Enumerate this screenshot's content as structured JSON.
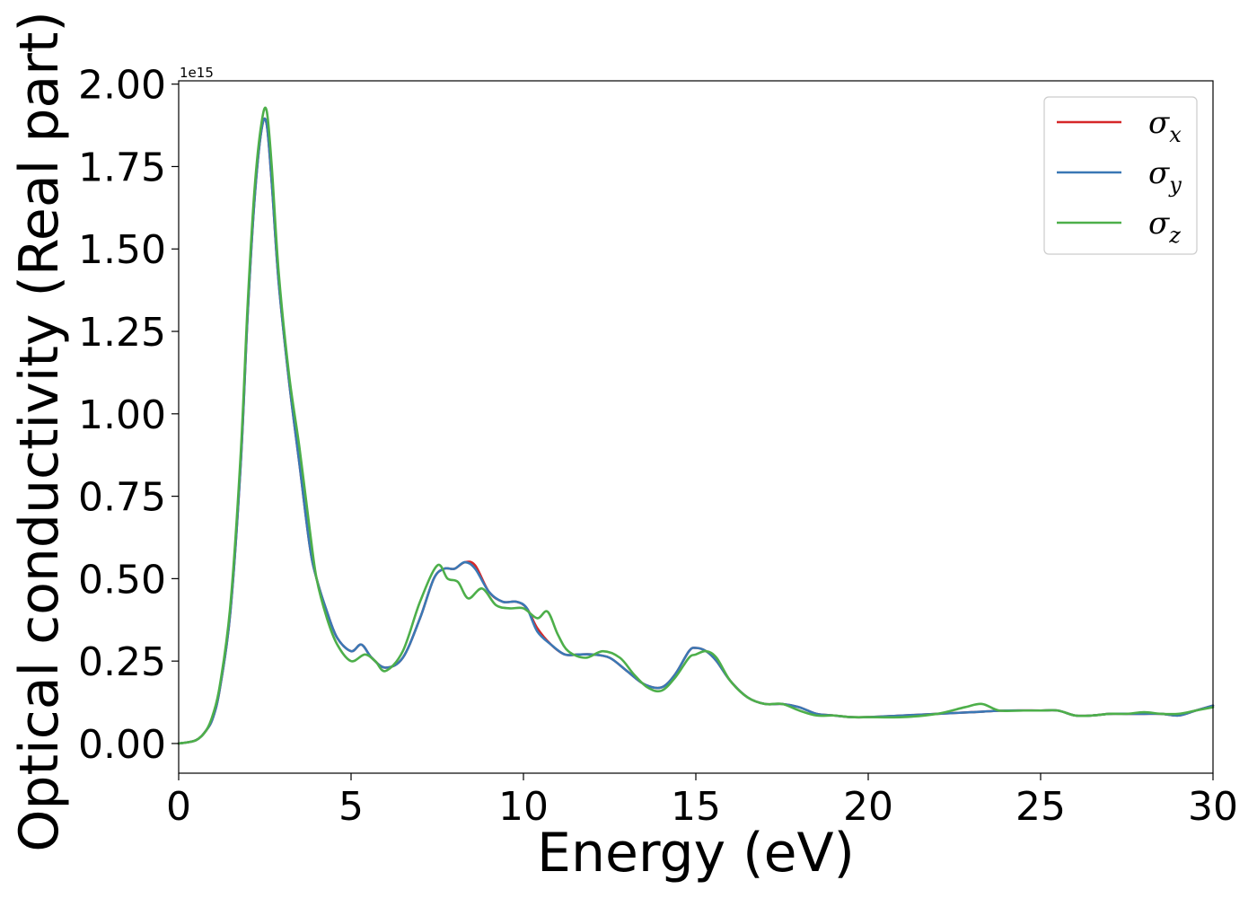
{
  "chart_data": {
    "type": "line",
    "xlabel": "Energy (eV)",
    "ylabel": "Optical conductivity (Real part)",
    "y_offset_text": "1e15",
    "xlim": [
      0,
      30
    ],
    "ylim": [
      -0.09,
      2.01
    ],
    "x_ticks": [
      0,
      5,
      10,
      15,
      20,
      25,
      30
    ],
    "x_tick_labels": [
      "0",
      "5",
      "10",
      "15",
      "20",
      "25",
      "30"
    ],
    "y_ticks": [
      0,
      0.25,
      0.5,
      0.75,
      1.0,
      1.25,
      1.5,
      1.75,
      2.0
    ],
    "y_tick_labels": [
      "0.00",
      "0.25",
      "0.50",
      "0.75",
      "1.00",
      "1.25",
      "1.50",
      "1.75",
      "2.00"
    ],
    "grid": false,
    "legend_position": "top-right",
    "series": [
      {
        "name": "σx",
        "symbol": "σ",
        "subscript": "x",
        "color": "#d62728",
        "x": [
          0,
          0.5,
          0.8,
          1.0,
          1.2,
          1.5,
          1.8,
          2.0,
          2.2,
          2.4,
          2.55,
          2.7,
          2.9,
          3.2,
          3.5,
          3.8,
          4.0,
          4.3,
          4.6,
          5.0,
          5.3,
          5.6,
          6.0,
          6.5,
          7.0,
          7.4,
          7.7,
          8.0,
          8.3,
          8.6,
          9.0,
          9.4,
          9.8,
          10.1,
          10.4,
          10.8,
          11.2,
          11.6,
          12.0,
          12.5,
          13.0,
          13.5,
          14.0,
          14.4,
          14.8,
          15.0,
          15.3,
          15.6,
          16.0,
          16.5,
          17.0,
          17.5,
          18.0,
          18.5,
          19.0,
          19.5,
          20.0,
          21.0,
          22.0,
          23.0,
          24.0,
          25.0,
          25.5,
          26.0,
          26.5,
          27.0,
          27.5,
          28.0,
          28.5,
          29.0,
          29.5,
          30.0
        ],
        "values": [
          0,
          0.01,
          0.04,
          0.08,
          0.17,
          0.4,
          0.85,
          1.3,
          1.65,
          1.86,
          1.88,
          1.7,
          1.4,
          1.1,
          0.85,
          0.6,
          0.5,
          0.4,
          0.32,
          0.28,
          0.3,
          0.26,
          0.23,
          0.26,
          0.38,
          0.5,
          0.53,
          0.53,
          0.55,
          0.54,
          0.46,
          0.43,
          0.43,
          0.41,
          0.35,
          0.3,
          0.27,
          0.27,
          0.27,
          0.26,
          0.22,
          0.18,
          0.17,
          0.21,
          0.28,
          0.29,
          0.28,
          0.25,
          0.19,
          0.14,
          0.12,
          0.12,
          0.11,
          0.09,
          0.085,
          0.08,
          0.08,
          0.085,
          0.09,
          0.095,
          0.1,
          0.1,
          0.1,
          0.085,
          0.085,
          0.09,
          0.09,
          0.09,
          0.09,
          0.085,
          0.1,
          0.115
        ]
      },
      {
        "name": "σy",
        "symbol": "σ",
        "subscript": "y",
        "color": "#3a78b5",
        "x": [
          0,
          0.5,
          0.8,
          1.0,
          1.2,
          1.5,
          1.8,
          2.0,
          2.2,
          2.4,
          2.55,
          2.7,
          2.9,
          3.2,
          3.5,
          3.8,
          4.0,
          4.3,
          4.6,
          5.0,
          5.3,
          5.6,
          6.0,
          6.5,
          7.0,
          7.4,
          7.7,
          8.0,
          8.3,
          8.6,
          9.0,
          9.4,
          9.8,
          10.1,
          10.4,
          10.8,
          11.2,
          11.6,
          12.0,
          12.5,
          13.0,
          13.5,
          14.0,
          14.4,
          14.8,
          15.0,
          15.3,
          15.6,
          16.0,
          16.5,
          17.0,
          17.5,
          18.0,
          18.5,
          19.0,
          19.5,
          20.0,
          21.0,
          22.0,
          23.0,
          24.0,
          25.0,
          25.5,
          26.0,
          26.5,
          27.0,
          27.5,
          28.0,
          28.5,
          29.0,
          29.5,
          30.0
        ],
        "values": [
          0,
          0.01,
          0.04,
          0.08,
          0.17,
          0.4,
          0.85,
          1.3,
          1.65,
          1.86,
          1.88,
          1.7,
          1.4,
          1.1,
          0.85,
          0.6,
          0.5,
          0.4,
          0.32,
          0.28,
          0.3,
          0.26,
          0.23,
          0.26,
          0.38,
          0.5,
          0.53,
          0.53,
          0.55,
          0.53,
          0.46,
          0.43,
          0.43,
          0.41,
          0.34,
          0.3,
          0.27,
          0.27,
          0.27,
          0.26,
          0.22,
          0.18,
          0.17,
          0.21,
          0.28,
          0.29,
          0.28,
          0.25,
          0.19,
          0.14,
          0.12,
          0.12,
          0.11,
          0.09,
          0.085,
          0.08,
          0.08,
          0.085,
          0.09,
          0.095,
          0.1,
          0.1,
          0.1,
          0.085,
          0.085,
          0.09,
          0.09,
          0.09,
          0.09,
          0.085,
          0.1,
          0.115
        ]
      },
      {
        "name": "σz",
        "symbol": "σ",
        "subscript": "z",
        "color": "#4daf4a",
        "x": [
          0,
          0.5,
          0.8,
          1.0,
          1.2,
          1.5,
          1.8,
          2.0,
          2.2,
          2.4,
          2.55,
          2.7,
          2.9,
          3.2,
          3.5,
          3.8,
          4.0,
          4.3,
          4.6,
          5.0,
          5.4,
          5.7,
          6.0,
          6.5,
          7.0,
          7.5,
          7.8,
          8.1,
          8.4,
          8.8,
          9.2,
          9.6,
          10.0,
          10.4,
          10.7,
          11.0,
          11.3,
          11.8,
          12.3,
          12.8,
          13.2,
          13.6,
          14.0,
          14.4,
          14.8,
          15.0,
          15.3,
          15.6,
          16.0,
          16.5,
          17.0,
          17.5,
          18.0,
          18.5,
          19.0,
          19.5,
          20.0,
          21.0,
          22.0,
          22.8,
          23.3,
          23.8,
          24.5,
          25.0,
          25.5,
          26.0,
          26.5,
          27.0,
          27.5,
          28.0,
          28.5,
          29.0,
          29.5,
          30.0
        ],
        "values": [
          0,
          0.01,
          0.04,
          0.09,
          0.18,
          0.42,
          0.88,
          1.33,
          1.68,
          1.88,
          1.92,
          1.75,
          1.43,
          1.12,
          0.9,
          0.65,
          0.5,
          0.38,
          0.3,
          0.25,
          0.27,
          0.25,
          0.22,
          0.28,
          0.43,
          0.54,
          0.5,
          0.49,
          0.44,
          0.47,
          0.42,
          0.41,
          0.41,
          0.38,
          0.4,
          0.33,
          0.28,
          0.26,
          0.28,
          0.26,
          0.21,
          0.17,
          0.16,
          0.2,
          0.26,
          0.27,
          0.28,
          0.26,
          0.19,
          0.14,
          0.12,
          0.12,
          0.1,
          0.085,
          0.085,
          0.08,
          0.08,
          0.08,
          0.09,
          0.11,
          0.12,
          0.1,
          0.1,
          0.1,
          0.1,
          0.085,
          0.085,
          0.09,
          0.09,
          0.095,
          0.09,
          0.09,
          0.1,
          0.11
        ]
      }
    ]
  }
}
